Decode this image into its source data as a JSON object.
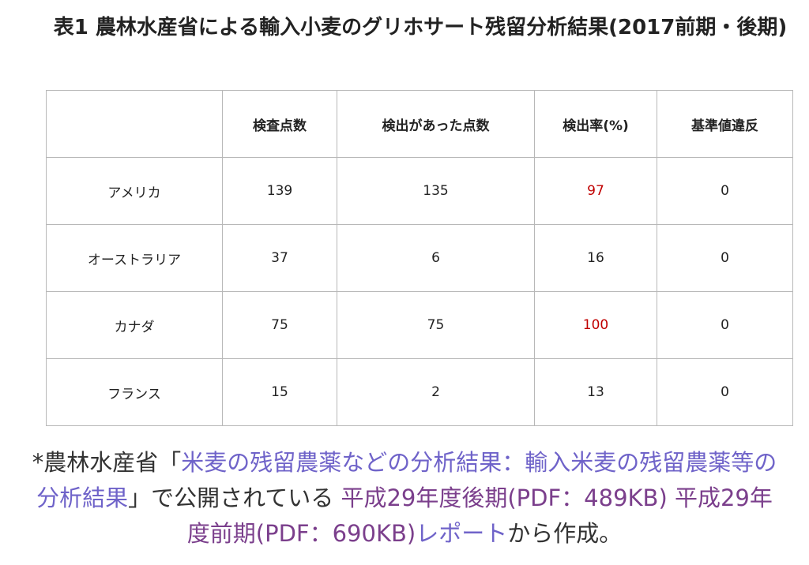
{
  "title": "表1 農林水産省による輸入小麦のグリホサート残留分析結果(2017前期・後期)",
  "table": {
    "headers": [
      "",
      "検査点数",
      "検出があった点数",
      "検出率(%)",
      "基準値違反"
    ],
    "rows": [
      {
        "country": "アメリカ",
        "tested": "139",
        "detected": "135",
        "rate": "97",
        "violation": "0"
      },
      {
        "country": "オーストラリア",
        "tested": "37",
        "detected": "6",
        "rate": "16",
        "violation": "0"
      },
      {
        "country": "カナダ",
        "tested": "75",
        "detected": "75",
        "rate": "100",
        "violation": "0"
      },
      {
        "country": "フランス",
        "tested": "15",
        "detected": "2",
        "rate": "13",
        "violation": "0"
      }
    ],
    "highlight_color": "#c00000"
  },
  "footnote": {
    "prefix": "*農林水産省「",
    "link1": "米麦の残留農薬などの分析結果：輸入米麦の残留農薬等の分析結果",
    "mid": "」で公開されている ",
    "link2": "平成29年度後期(PDF：489KB)",
    "space": " ",
    "link3": "平成29年度前期(PDF：690KB)",
    "link4": "レポート",
    "suffix": "から作成。"
  },
  "colors": {
    "link_blue": "#6f63c9",
    "link_purple": "#7b3f8c"
  }
}
